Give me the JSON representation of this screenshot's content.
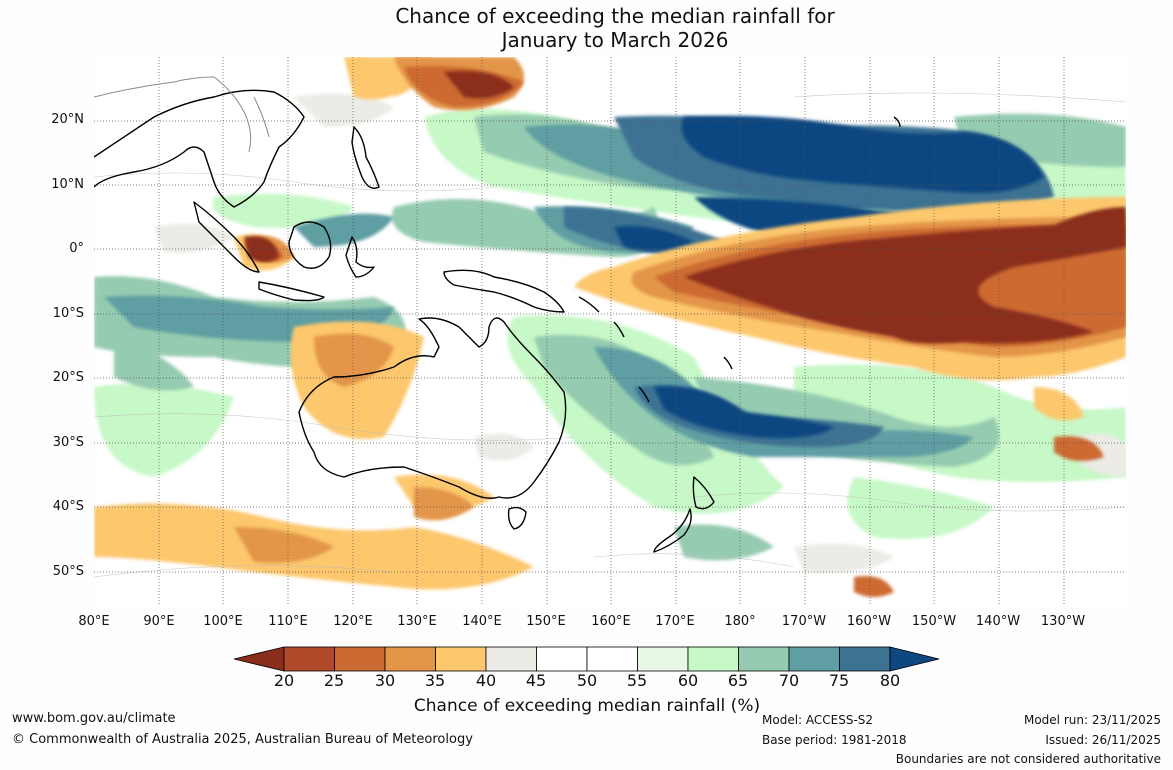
{
  "title": {
    "line1": "Chance of exceeding the median rainfall for",
    "line2": "January to March 2026"
  },
  "map": {
    "lat_labels": [
      "20°N",
      "10°N",
      "0°",
      "10°S",
      "20°S",
      "30°S",
      "40°S",
      "50°S"
    ],
    "lon_labels": [
      "80°E",
      "90°E",
      "100°E",
      "110°E",
      "120°E",
      "130°E",
      "140°E",
      "150°E",
      "160°E",
      "170°E",
      "180°",
      "170°W",
      "160°W",
      "150°W",
      "140°W",
      "130°W"
    ]
  },
  "colorbar": {
    "ticks": [
      "20",
      "25",
      "30",
      "35",
      "40",
      "45",
      "50",
      "55",
      "60",
      "65",
      "70",
      "75",
      "80"
    ],
    "colors": [
      "#8b2d1b",
      "#b0482a",
      "#cc6a33",
      "#e39548",
      "#fcc76d",
      "#ecebe6",
      "#ffffff",
      "#ffffff",
      "#e9f7e7",
      "#c7f8c7",
      "#95cbb0",
      "#5f9ea3",
      "#3e7293",
      "#0f4781"
    ],
    "label": "Chance of exceeding median rainfall (%)"
  },
  "footer": {
    "website": "www.bom.gov.au/climate",
    "copyright": "© Commonwealth of Australia 2025, Australian Bureau of Meteorology",
    "model": "Model: ACCESS-S2",
    "base_period": "Base period: 1981-2018",
    "model_run": "Model run: 23/11/2025",
    "issued": "Issued: 26/11/2025",
    "disclaimer": "Boundaries are not considered authoritative"
  }
}
